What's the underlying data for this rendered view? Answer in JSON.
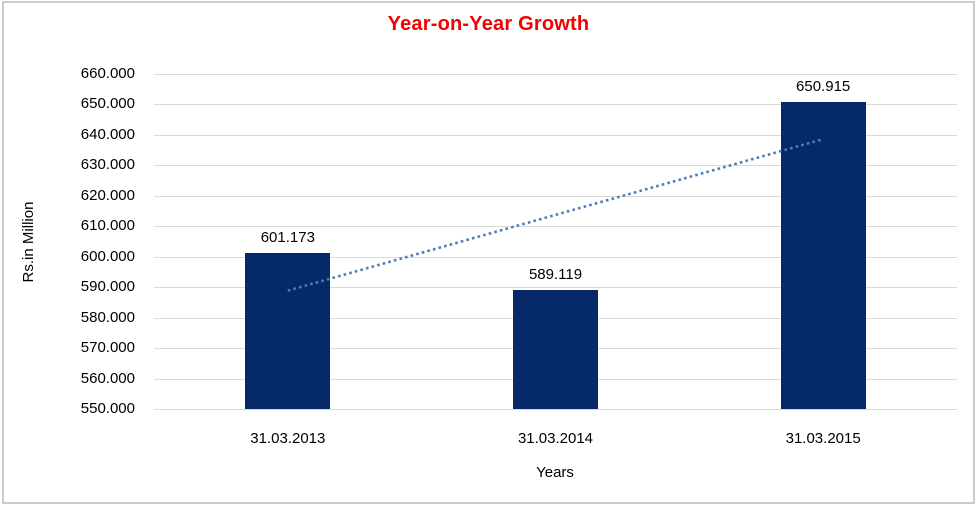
{
  "chart": {
    "title": "Year-on-Year Growth",
    "y_axis_title": "Rs.in Million",
    "x_axis_title": "Years",
    "colors": {
      "title": "#f40000",
      "bar": "#062a68",
      "trendline": "#4a7ebb",
      "gridline": "#d9d9d9",
      "text": "#000000",
      "frame_border": "#cbcbcb"
    }
  },
  "chart_data": {
    "type": "bar",
    "title": "Year-on-Year Growth",
    "xlabel": "Years",
    "ylabel": "Rs.in Million",
    "categories": [
      "31.03.2013",
      "31.03.2014",
      "31.03.2015"
    ],
    "values": [
      601.173,
      589.119,
      650.915
    ],
    "value_labels": [
      "601.173",
      "589.119",
      "650.915"
    ],
    "ylim": [
      550,
      660
    ],
    "y_tick_step": 10,
    "y_tick_labels": [
      "550.000",
      "560.000",
      "570.000",
      "580.000",
      "590.000",
      "600.000",
      "610.000",
      "620.000",
      "630.000",
      "640.000",
      "650.000",
      "660.000"
    ],
    "grid": true,
    "legend": "none",
    "trendline": {
      "type": "linear",
      "style": "dotted",
      "start_value": 588.87,
      "end_value": 638.61
    }
  }
}
